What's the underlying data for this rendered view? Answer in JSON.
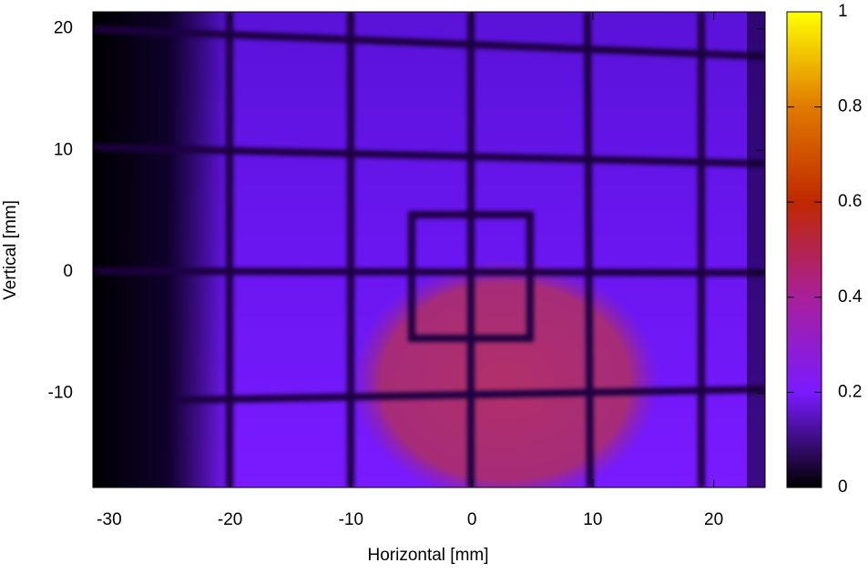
{
  "chart_data": {
    "type": "heatmap",
    "xlabel": "Horizontal [mm]",
    "ylabel": "Vertical [mm]",
    "xlim": [
      -31.35,
      24.25
    ],
    "xticks": [
      -30,
      -20,
      -10,
      0,
      10,
      20
    ],
    "ylim": [
      -17.75,
      21.4
    ],
    "yticks": [
      -10,
      0,
      10,
      20
    ],
    "clim": [
      0,
      1
    ],
    "cticks": [
      0,
      0.2,
      0.4,
      0.6,
      0.8,
      1
    ],
    "colormap": [
      "#000000",
      "#7a1aff",
      "#a8209a",
      "#c02800",
      "#e07a00",
      "#ffff00"
    ]
  }
}
